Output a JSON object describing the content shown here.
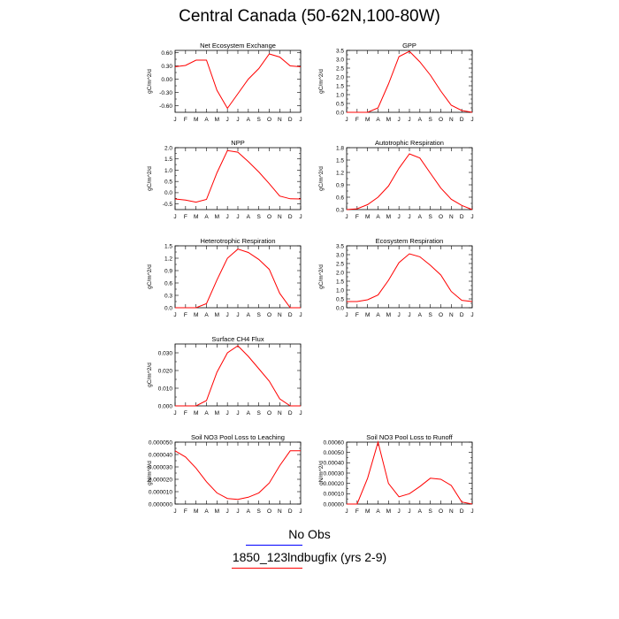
{
  "title": "Central Canada (50-62N,100-80W)",
  "legend": [
    {
      "label": "No Obs",
      "color": "#0000ff"
    },
    {
      "label": "1850_123lndbugfix (yrs 2-9)",
      "color": "#ff0000"
    }
  ],
  "series_color": "#ff0000",
  "months": [
    "J",
    "F",
    "M",
    "A",
    "M",
    "J",
    "J",
    "A",
    "S",
    "O",
    "N",
    "D",
    "J"
  ],
  "chart_data": [
    {
      "type": "line",
      "title": "Net Ecosystem Exchange",
      "ylabel": "gC/m^2/d",
      "ylim": [
        -0.75,
        0.65
      ],
      "yticks": [
        -0.6,
        -0.3,
        0.0,
        0.3,
        0.6
      ],
      "ytick_labels": [
        "-0.60",
        "-0.30",
        "0.00",
        "0.30",
        "0.60"
      ],
      "x": [
        "J",
        "F",
        "M",
        "A",
        "M",
        "J",
        "J",
        "A",
        "S",
        "O",
        "N",
        "D",
        "J"
      ],
      "values": [
        0.28,
        0.31,
        0.43,
        0.43,
        -0.25,
        -0.66,
        -0.33,
        0.0,
        0.24,
        0.57,
        0.5,
        0.3,
        0.28
      ]
    },
    {
      "type": "line",
      "title": "GPP",
      "ylabel": "gC/m^2/d",
      "ylim": [
        0,
        3.5
      ],
      "yticks": [
        0,
        0.5,
        1,
        1.5,
        2,
        2.5,
        3,
        3.5
      ],
      "ytick_labels": [
        "0.0",
        "0.5",
        "1.0",
        "1.5",
        "2.0",
        "2.5",
        "3.0",
        "3.5"
      ],
      "x": [
        "J",
        "F",
        "M",
        "A",
        "M",
        "J",
        "J",
        "A",
        "S",
        "O",
        "N",
        "D",
        "J"
      ],
      "values": [
        0.0,
        0.0,
        0.0,
        0.25,
        1.6,
        3.15,
        3.45,
        2.85,
        2.1,
        1.2,
        0.4,
        0.1,
        0.0
      ]
    },
    {
      "type": "line",
      "title": "NPP",
      "ylabel": "gC/m^2/d",
      "ylim": [
        -0.75,
        2.0
      ],
      "yticks": [
        -0.5,
        0,
        0.5,
        1,
        1.5,
        2
      ],
      "ytick_labels": [
        "-0.5",
        "0.0",
        "0.5",
        "1.0",
        "1.5",
        "2.0"
      ],
      "x": [
        "J",
        "F",
        "M",
        "A",
        "M",
        "J",
        "J",
        "A",
        "S",
        "O",
        "N",
        "D",
        "J"
      ],
      "values": [
        -0.28,
        -0.33,
        -0.42,
        -0.3,
        0.88,
        1.87,
        1.8,
        1.38,
        0.92,
        0.4,
        -0.15,
        -0.27,
        -0.28
      ]
    },
    {
      "type": "line",
      "title": "Autotrophic Respiration",
      "ylabel": "gC/m^2/d",
      "ylim": [
        0.3,
        1.8
      ],
      "yticks": [
        0.3,
        0.6,
        0.9,
        1.2,
        1.5,
        1.8
      ],
      "ytick_labels": [
        "0.3",
        "0.6",
        "0.9",
        "1.2",
        "1.5",
        "1.8"
      ],
      "x": [
        "J",
        "F",
        "M",
        "A",
        "M",
        "J",
        "J",
        "A",
        "S",
        "O",
        "N",
        "D",
        "J"
      ],
      "values": [
        0.3,
        0.32,
        0.42,
        0.6,
        0.87,
        1.3,
        1.65,
        1.55,
        1.18,
        0.82,
        0.55,
        0.4,
        0.3
      ]
    },
    {
      "type": "line",
      "title": "Heterotrophic Respiration",
      "ylabel": "gC/m^2/d",
      "ylim": [
        0,
        1.5
      ],
      "yticks": [
        0,
        0.3,
        0.6,
        0.9,
        1.2,
        1.5
      ],
      "ytick_labels": [
        "0.0",
        "0.3",
        "0.6",
        "0.9",
        "1.2",
        "1.5"
      ],
      "x": [
        "J",
        "F",
        "M",
        "A",
        "M",
        "J",
        "J",
        "A",
        "S",
        "O",
        "N",
        "D",
        "J"
      ],
      "values": [
        0.0,
        0.0,
        0.0,
        0.1,
        0.67,
        1.2,
        1.42,
        1.34,
        1.17,
        0.93,
        0.35,
        0.0,
        0.0
      ]
    },
    {
      "type": "line",
      "title": "Ecosystem Respiration",
      "ylabel": "gC/m^2/d",
      "ylim": [
        0,
        3.5
      ],
      "yticks": [
        0,
        0.5,
        1,
        1.5,
        2,
        2.5,
        3,
        3.5
      ],
      "ytick_labels": [
        "0.0",
        "0.5",
        "1.0",
        "1.5",
        "2.0",
        "2.5",
        "3.0",
        "3.5"
      ],
      "x": [
        "J",
        "F",
        "M",
        "A",
        "M",
        "J",
        "J",
        "A",
        "S",
        "O",
        "N",
        "D",
        "J"
      ],
      "values": [
        0.35,
        0.35,
        0.45,
        0.72,
        1.55,
        2.55,
        3.05,
        2.88,
        2.4,
        1.85,
        0.92,
        0.42,
        0.35
      ]
    },
    {
      "type": "line",
      "title": "Surface CH4 Flux",
      "ylabel": "gC/m^2/d",
      "ylim": [
        0,
        0.035
      ],
      "yticks": [
        0,
        0.01,
        0.02,
        0.03
      ],
      "ytick_labels": [
        "0.000",
        "0.010",
        "0.020",
        "0.030"
      ],
      "x": [
        "J",
        "F",
        "M",
        "A",
        "M",
        "J",
        "J",
        "A",
        "S",
        "O",
        "N",
        "D",
        "J"
      ],
      "values": [
        0.0,
        0.0,
        0.0,
        0.003,
        0.019,
        0.03,
        0.034,
        0.028,
        0.021,
        0.014,
        0.004,
        0.0,
        0.0
      ]
    },
    {
      "type": "line",
      "title": "Soil NO3 Pool Loss to Leaching",
      "ylabel": "gN/m^2/d",
      "ylim": [
        0,
        5e-05
      ],
      "yticks": [
        0,
        1e-05,
        2e-05,
        3e-05,
        4e-05,
        5e-05
      ],
      "ytick_labels": [
        "0.000000",
        "0.000010",
        "0.000020",
        "0.000030",
        "0.000040",
        "0.000050"
      ],
      "x": [
        "J",
        "F",
        "M",
        "A",
        "M",
        "J",
        "J",
        "A",
        "S",
        "O",
        "N",
        "D",
        "J"
      ],
      "values": [
        4.3e-05,
        3.8e-05,
        2.9e-05,
        1.8e-05,
        9e-06,
        4.5e-06,
        3.8e-06,
        5.5e-06,
        9e-06,
        1.7e-05,
        3.1e-05,
        4.3e-05,
        4.3e-05
      ]
    },
    {
      "type": "line",
      "title": "Soil NO3 Pool Loss to Runoff",
      "ylabel": "gN/m^2/d",
      "ylim": [
        0,
        0.0006
      ],
      "yticks": [
        0,
        0.0001,
        0.0002,
        0.0003,
        0.0004,
        0.0005,
        0.0006
      ],
      "ytick_labels": [
        "0.00000",
        "0.00010",
        "0.00020",
        "0.00030",
        "0.00040",
        "0.00050",
        "0.00060"
      ],
      "x": [
        "J",
        "F",
        "M",
        "A",
        "M",
        "J",
        "J",
        "A",
        "S",
        "O",
        "N",
        "D",
        "J"
      ],
      "values": [
        0.0,
        0.0,
        0.00025,
        0.0006,
        0.0002,
        7e-05,
        0.0001,
        0.00017,
        0.00025,
        0.00024,
        0.00018,
        2e-05,
        0.0
      ]
    }
  ]
}
